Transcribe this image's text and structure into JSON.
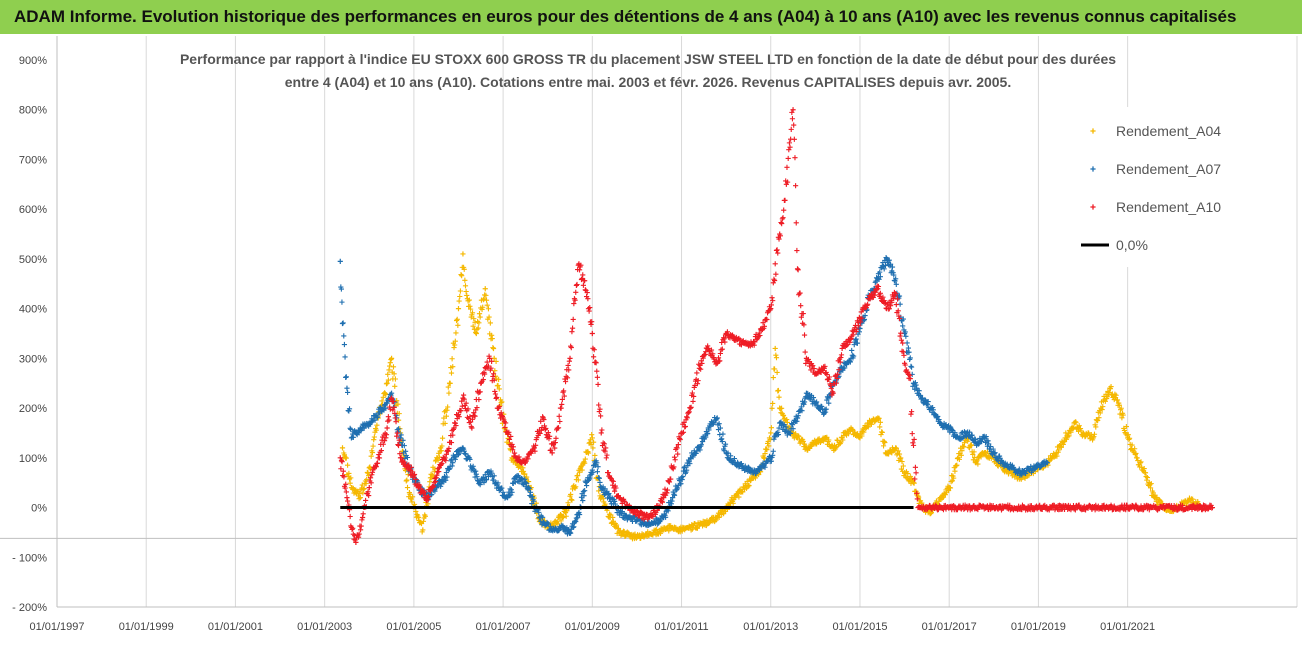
{
  "banner": {
    "title": "ADAM Informe. Evolution historique des performances en euros pour des détentions de 4 ans (A04) à 10 ans (A10) avec les revenus connus capitalisés",
    "background": "#8fcf4f"
  },
  "chart_data": {
    "type": "scatter",
    "title": [
      "Performance par rapport à l'indice EU STOXX 600 GROSS TR  du placement JSW STEEL LTD en fonction de la date de début pour des durées",
      "entre 4 (A04) et 10 ans (A10). Cotations entre mai. 2003 et févr. 2026. Revenus CAPITALISES depuis avr. 2005."
    ],
    "xlabel": "",
    "ylabel": "",
    "x_range": [
      1997.0,
      2023.9
    ],
    "ylim": [
      -200,
      900
    ],
    "y_ticks": [
      900,
      800,
      700,
      600,
      500,
      400,
      300,
      200,
      100,
      0,
      -100,
      -200
    ],
    "y_tick_labels": [
      "900%",
      "800%",
      "700%",
      "600%",
      "500%",
      "400%",
      "300%",
      "200%",
      "100%",
      "0%",
      "- 100%",
      "- 200%"
    ],
    "x_ticks": [
      1997,
      1999,
      2001,
      2003,
      2005,
      2007,
      2009,
      2011,
      2013,
      2015,
      2017,
      2019,
      2021
    ],
    "x_tick_labels": [
      "01/01/1997",
      "01/01/1999",
      "01/01/2001",
      "01/01/2003",
      "01/01/2005",
      "01/01/2007",
      "01/01/2009",
      "01/01/2011",
      "01/01/2013",
      "01/01/2015",
      "01/01/2017",
      "01/01/2019",
      "01/01/2021"
    ],
    "grid": "vertical",
    "legend_position": "top-right",
    "series": [
      {
        "name": "Rendement_A04",
        "color": "#f5b800",
        "marker": "+",
        "points": [
          [
            2003.4,
            120
          ],
          [
            2003.6,
            40
          ],
          [
            2003.8,
            20
          ],
          [
            2004.0,
            80
          ],
          [
            2004.2,
            180
          ],
          [
            2004.4,
            250
          ],
          [
            2004.5,
            300
          ],
          [
            2004.7,
            150
          ],
          [
            2004.9,
            30
          ],
          [
            2005.1,
            -20
          ],
          [
            2005.2,
            -45
          ],
          [
            2005.4,
            60
          ],
          [
            2005.6,
            120
          ],
          [
            2005.8,
            250
          ],
          [
            2006.0,
            400
          ],
          [
            2006.1,
            510
          ],
          [
            2006.2,
            420
          ],
          [
            2006.4,
            350
          ],
          [
            2006.6,
            440
          ],
          [
            2006.8,
            300
          ],
          [
            2007.0,
            180
          ],
          [
            2007.2,
            100
          ],
          [
            2007.4,
            80
          ],
          [
            2007.6,
            40
          ],
          [
            2007.8,
            -20
          ],
          [
            2008.0,
            -40
          ],
          [
            2008.2,
            -30
          ],
          [
            2008.4,
            -10
          ],
          [
            2008.6,
            40
          ],
          [
            2008.8,
            90
          ],
          [
            2009.0,
            140
          ],
          [
            2009.1,
            60
          ],
          [
            2009.2,
            20
          ],
          [
            2009.4,
            -20
          ],
          [
            2009.6,
            -50
          ],
          [
            2009.8,
            -55
          ],
          [
            2010.0,
            -60
          ],
          [
            2010.2,
            -55
          ],
          [
            2010.4,
            -50
          ],
          [
            2010.6,
            -45
          ],
          [
            2010.8,
            -40
          ],
          [
            2011.0,
            -45
          ],
          [
            2011.2,
            -40
          ],
          [
            2011.4,
            -35
          ],
          [
            2011.6,
            -30
          ],
          [
            2011.8,
            -20
          ],
          [
            2012.0,
            0
          ],
          [
            2012.2,
            20
          ],
          [
            2012.4,
            40
          ],
          [
            2012.6,
            60
          ],
          [
            2012.8,
            80
          ],
          [
            2013.0,
            150
          ],
          [
            2013.1,
            320
          ],
          [
            2013.2,
            200
          ],
          [
            2013.4,
            160
          ],
          [
            2013.6,
            140
          ],
          [
            2013.8,
            120
          ],
          [
            2014.0,
            130
          ],
          [
            2014.2,
            140
          ],
          [
            2014.4,
            120
          ],
          [
            2014.6,
            140
          ],
          [
            2014.8,
            160
          ],
          [
            2015.0,
            140
          ],
          [
            2015.2,
            170
          ],
          [
            2015.4,
            180
          ],
          [
            2015.6,
            110
          ],
          [
            2015.8,
            120
          ],
          [
            2016.0,
            70
          ],
          [
            2016.2,
            50
          ],
          [
            2016.4,
            0
          ],
          [
            2016.6,
            -10
          ],
          [
            2016.8,
            20
          ],
          [
            2017.0,
            40
          ],
          [
            2017.2,
            100
          ],
          [
            2017.4,
            140
          ],
          [
            2017.6,
            90
          ],
          [
            2017.8,
            110
          ],
          [
            2018.0,
            100
          ],
          [
            2018.2,
            80
          ],
          [
            2018.4,
            70
          ],
          [
            2018.6,
            60
          ],
          [
            2018.8,
            70
          ],
          [
            2019.0,
            80
          ],
          [
            2019.2,
            90
          ],
          [
            2019.4,
            110
          ],
          [
            2019.6,
            140
          ],
          [
            2019.8,
            170
          ],
          [
            2020.0,
            150
          ],
          [
            2020.2,
            140
          ],
          [
            2020.4,
            200
          ],
          [
            2020.6,
            240
          ],
          [
            2020.8,
            210
          ],
          [
            2021.0,
            140
          ],
          [
            2021.2,
            100
          ],
          [
            2021.4,
            70
          ],
          [
            2021.6,
            20
          ],
          [
            2021.8,
            0
          ],
          [
            2022.0,
            -5
          ],
          [
            2022.2,
            5
          ],
          [
            2022.4,
            15
          ],
          [
            2022.6,
            5
          ]
        ]
      },
      {
        "name": "Rendement_A07",
        "color": "#1f6fb0",
        "marker": "+",
        "points": [
          [
            2003.35,
            495
          ],
          [
            2003.4,
            370
          ],
          [
            2003.5,
            240
          ],
          [
            2003.6,
            140
          ],
          [
            2003.8,
            160
          ],
          [
            2004.0,
            170
          ],
          [
            2004.2,
            190
          ],
          [
            2004.4,
            210
          ],
          [
            2004.5,
            230
          ],
          [
            2004.7,
            140
          ],
          [
            2004.9,
            80
          ],
          [
            2005.1,
            40
          ],
          [
            2005.3,
            20
          ],
          [
            2005.5,
            40
          ],
          [
            2005.7,
            60
          ],
          [
            2005.9,
            100
          ],
          [
            2006.1,
            120
          ],
          [
            2006.3,
            80
          ],
          [
            2006.5,
            50
          ],
          [
            2006.7,
            70
          ],
          [
            2006.9,
            40
          ],
          [
            2007.1,
            20
          ],
          [
            2007.3,
            60
          ],
          [
            2007.5,
            50
          ],
          [
            2007.7,
            0
          ],
          [
            2007.9,
            -30
          ],
          [
            2008.1,
            -45
          ],
          [
            2008.3,
            -40
          ],
          [
            2008.5,
            -50
          ],
          [
            2008.7,
            -10
          ],
          [
            2008.9,
            60
          ],
          [
            2009.1,
            90
          ],
          [
            2009.2,
            40
          ],
          [
            2009.4,
            20
          ],
          [
            2009.6,
            -10
          ],
          [
            2009.8,
            -20
          ],
          [
            2010.0,
            -25
          ],
          [
            2010.2,
            -35
          ],
          [
            2010.4,
            -30
          ],
          [
            2010.6,
            -20
          ],
          [
            2010.8,
            20
          ],
          [
            2011.0,
            60
          ],
          [
            2011.2,
            100
          ],
          [
            2011.4,
            120
          ],
          [
            2011.6,
            160
          ],
          [
            2011.8,
            180
          ],
          [
            2012.0,
            110
          ],
          [
            2012.2,
            90
          ],
          [
            2012.4,
            80
          ],
          [
            2012.6,
            70
          ],
          [
            2012.8,
            80
          ],
          [
            2013.0,
            100
          ],
          [
            2013.2,
            170
          ],
          [
            2013.4,
            150
          ],
          [
            2013.6,
            180
          ],
          [
            2013.8,
            230
          ],
          [
            2014.0,
            210
          ],
          [
            2014.2,
            190
          ],
          [
            2014.4,
            250
          ],
          [
            2014.6,
            280
          ],
          [
            2014.8,
            300
          ],
          [
            2015.0,
            360
          ],
          [
            2015.2,
            420
          ],
          [
            2015.4,
            460
          ],
          [
            2015.6,
            500
          ],
          [
            2015.8,
            460
          ],
          [
            2016.0,
            350
          ],
          [
            2016.2,
            250
          ],
          [
            2016.4,
            220
          ],
          [
            2016.6,
            200
          ],
          [
            2016.8,
            170
          ],
          [
            2017.0,
            160
          ],
          [
            2017.2,
            140
          ],
          [
            2017.4,
            150
          ],
          [
            2017.6,
            130
          ],
          [
            2017.8,
            140
          ],
          [
            2018.0,
            110
          ],
          [
            2018.2,
            90
          ],
          [
            2018.4,
            80
          ],
          [
            2018.6,
            70
          ],
          [
            2018.8,
            75
          ],
          [
            2019.0,
            85
          ],
          [
            2019.2,
            90
          ]
        ]
      },
      {
        "name": "Rendement_A10",
        "color": "#ee1c25",
        "marker": "+",
        "points": [
          [
            2003.35,
            100
          ],
          [
            2003.5,
            20
          ],
          [
            2003.6,
            -40
          ],
          [
            2003.7,
            -70
          ],
          [
            2003.85,
            -20
          ],
          [
            2004.0,
            40
          ],
          [
            2004.2,
            100
          ],
          [
            2004.4,
            160
          ],
          [
            2004.5,
            220
          ],
          [
            2004.7,
            100
          ],
          [
            2004.9,
            80
          ],
          [
            2005.1,
            40
          ],
          [
            2005.3,
            20
          ],
          [
            2005.5,
            60
          ],
          [
            2005.7,
            100
          ],
          [
            2005.9,
            160
          ],
          [
            2006.1,
            220
          ],
          [
            2006.3,
            160
          ],
          [
            2006.5,
            250
          ],
          [
            2006.7,
            300
          ],
          [
            2006.9,
            200
          ],
          [
            2007.1,
            150
          ],
          [
            2007.3,
            100
          ],
          [
            2007.5,
            90
          ],
          [
            2007.7,
            120
          ],
          [
            2007.9,
            180
          ],
          [
            2008.1,
            110
          ],
          [
            2008.3,
            200
          ],
          [
            2008.5,
            300
          ],
          [
            2008.6,
            420
          ],
          [
            2008.7,
            490
          ],
          [
            2008.9,
            420
          ],
          [
            2009.0,
            350
          ],
          [
            2009.2,
            150
          ],
          [
            2009.4,
            60
          ],
          [
            2009.6,
            20
          ],
          [
            2009.8,
            0
          ],
          [
            2010.0,
            -10
          ],
          [
            2010.2,
            -20
          ],
          [
            2010.4,
            -10
          ],
          [
            2010.6,
            20
          ],
          [
            2010.8,
            80
          ],
          [
            2011.0,
            150
          ],
          [
            2011.2,
            200
          ],
          [
            2011.4,
            280
          ],
          [
            2011.6,
            320
          ],
          [
            2011.8,
            290
          ],
          [
            2012.0,
            350
          ],
          [
            2012.2,
            340
          ],
          [
            2012.4,
            330
          ],
          [
            2012.6,
            330
          ],
          [
            2012.8,
            360
          ],
          [
            2013.0,
            400
          ],
          [
            2013.2,
            550
          ],
          [
            2013.35,
            650
          ],
          [
            2013.5,
            800
          ],
          [
            2013.6,
            480
          ],
          [
            2013.8,
            300
          ],
          [
            2014.0,
            270
          ],
          [
            2014.2,
            280
          ],
          [
            2014.4,
            230
          ],
          [
            2014.6,
            320
          ],
          [
            2014.8,
            340
          ],
          [
            2015.0,
            380
          ],
          [
            2015.2,
            420
          ],
          [
            2015.4,
            440
          ],
          [
            2015.6,
            400
          ],
          [
            2015.8,
            430
          ],
          [
            2016.0,
            290
          ],
          [
            2016.1,
            260
          ],
          [
            2016.3,
            0
          ],
          [
            2017.0,
            0
          ],
          [
            2018.0,
            0
          ],
          [
            2019.0,
            0
          ],
          [
            2020.0,
            0
          ],
          [
            2021.0,
            0
          ],
          [
            2022.0,
            0
          ],
          [
            2022.9,
            0
          ]
        ]
      },
      {
        "name": "0,0%",
        "color": "#000000",
        "marker": "line",
        "points": [
          [
            2003.35,
            0
          ],
          [
            2016.2,
            0
          ]
        ]
      }
    ]
  }
}
